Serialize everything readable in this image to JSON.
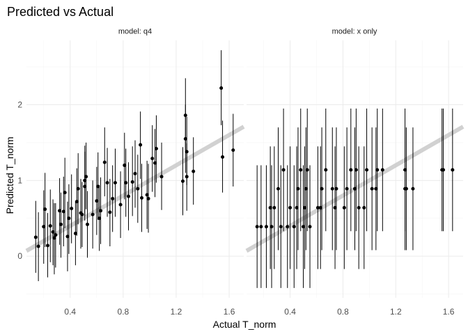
{
  "chart_data": {
    "type": "scatter",
    "title": "Predicted vs Actual",
    "xlabel": "Actual T_norm",
    "ylabel": "Predicted T_norm",
    "xlim": [
      0.07,
      1.71
    ],
    "ylim": [
      -0.55,
      2.85
    ],
    "x_ticks": [
      0.4,
      0.8,
      1.2,
      1.6
    ],
    "x_tick_labels": [
      "0.4",
      "0.8",
      "1.2",
      "1.6"
    ],
    "y_ticks": [
      0,
      1,
      2
    ],
    "y_tick_labels": [
      "0",
      "1",
      "2"
    ],
    "grid": true,
    "legend": "none",
    "colors": {
      "points": "#000000",
      "error_bars": "#000000",
      "reference_line": "#cccccc",
      "grid": "#ebebeb"
    },
    "reference_line": {
      "type": "y=x",
      "intercept": 0,
      "slope": 1
    },
    "panels": [
      {
        "label": "model: q4",
        "points": [
          {
            "x": 0.14,
            "y": 0.25,
            "lo": -0.22,
            "hi": 0.73
          },
          {
            "x": 0.16,
            "y": 0.13,
            "lo": -0.33,
            "hi": 0.58
          },
          {
            "x": 0.2,
            "y": 0.39,
            "lo": -0.1,
            "hi": 0.87
          },
          {
            "x": 0.21,
            "y": 0.62,
            "lo": 0.12,
            "hi": 1.1
          },
          {
            "x": 0.23,
            "y": 0.14,
            "lo": -0.28,
            "hi": 0.57
          },
          {
            "x": 0.25,
            "y": 0.4,
            "lo": -0.08,
            "hi": 0.88
          },
          {
            "x": 0.27,
            "y": 0.32,
            "lo": -0.12,
            "hi": 0.75
          },
          {
            "x": 0.28,
            "y": 0.24,
            "lo": -0.24,
            "hi": 0.7
          },
          {
            "x": 0.29,
            "y": 0.28,
            "lo": -0.15,
            "hi": 0.7
          },
          {
            "x": 0.32,
            "y": 0.6,
            "lo": 0.15,
            "hi": 1.03
          },
          {
            "x": 0.33,
            "y": 0.42,
            "lo": -0.02,
            "hi": 0.84
          },
          {
            "x": 0.35,
            "y": 0.59,
            "lo": 0.13,
            "hi": 1.05
          },
          {
            "x": 0.36,
            "y": 0.84,
            "lo": 0.37,
            "hi": 1.3
          },
          {
            "x": 0.38,
            "y": 0.26,
            "lo": -0.2,
            "hi": 0.72
          },
          {
            "x": 0.39,
            "y": 0.5,
            "lo": 0.03,
            "hi": 0.95
          },
          {
            "x": 0.41,
            "y": 0.63,
            "lo": 0.17,
            "hi": 1.08
          },
          {
            "x": 0.44,
            "y": 0.3,
            "lo": -0.12,
            "hi": 0.72
          },
          {
            "x": 0.45,
            "y": 0.72,
            "lo": 0.27,
            "hi": 1.16
          },
          {
            "x": 0.46,
            "y": 0.89,
            "lo": 0.42,
            "hi": 1.36
          },
          {
            "x": 0.48,
            "y": 0.57,
            "lo": 0.1,
            "hi": 1.02
          },
          {
            "x": 0.49,
            "y": 0.55,
            "lo": 0.12,
            "hi": 0.98
          },
          {
            "x": 0.51,
            "y": 0.92,
            "lo": 0.47,
            "hi": 1.38
          },
          {
            "x": 0.51,
            "y": 1.0,
            "lo": 0.53,
            "hi": 1.46
          },
          {
            "x": 0.52,
            "y": 1.05,
            "lo": 0.62,
            "hi": 1.5
          },
          {
            "x": 0.53,
            "y": 0.42,
            "lo": -0.02,
            "hi": 0.86
          },
          {
            "x": 0.57,
            "y": 0.55,
            "lo": 0.1,
            "hi": 1.0
          },
          {
            "x": 0.6,
            "y": 0.73,
            "lo": 0.28,
            "hi": 1.18
          },
          {
            "x": 0.61,
            "y": 0.92,
            "lo": 0.48,
            "hi": 1.37
          },
          {
            "x": 0.62,
            "y": 0.5,
            "lo": 0.07,
            "hi": 0.94
          },
          {
            "x": 0.63,
            "y": 0.6,
            "lo": 0.16,
            "hi": 1.04
          },
          {
            "x": 0.66,
            "y": 1.24,
            "lo": 0.79,
            "hi": 1.7
          },
          {
            "x": 0.68,
            "y": 0.97,
            "lo": 0.52,
            "hi": 1.43
          },
          {
            "x": 0.7,
            "y": 0.58,
            "lo": 0.13,
            "hi": 1.02
          },
          {
            "x": 0.72,
            "y": 0.76,
            "lo": 0.32,
            "hi": 1.2
          },
          {
            "x": 0.74,
            "y": 0.97,
            "lo": 0.52,
            "hi": 1.42
          },
          {
            "x": 0.78,
            "y": 0.68,
            "lo": 0.24,
            "hi": 1.12
          },
          {
            "x": 0.81,
            "y": 1.2,
            "lo": 0.75,
            "hi": 1.63
          },
          {
            "x": 0.82,
            "y": 0.97,
            "lo": 0.52,
            "hi": 1.42
          },
          {
            "x": 0.84,
            "y": 0.79,
            "lo": 0.34,
            "hi": 1.24
          },
          {
            "x": 0.87,
            "y": 0.98,
            "lo": 0.53,
            "hi": 1.45
          },
          {
            "x": 0.89,
            "y": 1.09,
            "lo": 0.64,
            "hi": 1.53
          },
          {
            "x": 0.91,
            "y": 0.89,
            "lo": 0.44,
            "hi": 1.34
          },
          {
            "x": 0.93,
            "y": 1.47,
            "lo": 1.02,
            "hi": 1.91
          },
          {
            "x": 0.94,
            "y": 0.77,
            "lo": 0.32,
            "hi": 1.22
          },
          {
            "x": 0.98,
            "y": 0.81,
            "lo": 0.36,
            "hi": 1.26
          },
          {
            "x": 0.99,
            "y": 0.76,
            "lo": 0.31,
            "hi": 1.22
          },
          {
            "x": 1.02,
            "y": 1.29,
            "lo": 0.85,
            "hi": 1.73
          },
          {
            "x": 1.04,
            "y": 1.23,
            "lo": 0.78,
            "hi": 1.68
          },
          {
            "x": 1.05,
            "y": 1.42,
            "lo": 0.97,
            "hi": 1.86
          },
          {
            "x": 1.09,
            "y": 1.05,
            "lo": 0.61,
            "hi": 1.5
          },
          {
            "x": 1.25,
            "y": 0.99,
            "lo": 0.54,
            "hi": 1.44
          },
          {
            "x": 1.27,
            "y": 1.86,
            "lo": 1.4,
            "hi": 2.35
          },
          {
            "x": 1.27,
            "y": 1.55,
            "lo": 1.1,
            "hi": 2.0
          },
          {
            "x": 1.28,
            "y": 1.38,
            "lo": 0.94,
            "hi": 1.84
          },
          {
            "x": 1.28,
            "y": 1.05,
            "lo": 0.6,
            "hi": 1.49
          },
          {
            "x": 1.33,
            "y": 1.12,
            "lo": 0.68,
            "hi": 1.57
          },
          {
            "x": 1.54,
            "y": 2.22,
            "lo": 1.73,
            "hi": 2.72
          },
          {
            "x": 1.55,
            "y": 1.31,
            "lo": 0.84,
            "hi": 1.79
          },
          {
            "x": 1.63,
            "y": 1.4,
            "lo": 0.92,
            "hi": 1.88
          }
        ]
      },
      {
        "label": "model: x only",
        "points": [
          {
            "x": 0.15,
            "y": 0.39,
            "lo": -0.42,
            "hi": 1.2
          },
          {
            "x": 0.18,
            "y": 0.39,
            "lo": -0.42,
            "hi": 1.2
          },
          {
            "x": 0.22,
            "y": 0.39,
            "lo": -0.42,
            "hi": 1.2
          },
          {
            "x": 0.25,
            "y": 0.64,
            "lo": -0.17,
            "hi": 1.45
          },
          {
            "x": 0.26,
            "y": 0.39,
            "lo": -0.42,
            "hi": 1.2
          },
          {
            "x": 0.28,
            "y": 0.64,
            "lo": -0.17,
            "hi": 1.45
          },
          {
            "x": 0.31,
            "y": 0.89,
            "lo": 0.08,
            "hi": 1.7
          },
          {
            "x": 0.33,
            "y": 0.39,
            "lo": -0.42,
            "hi": 1.2
          },
          {
            "x": 0.35,
            "y": 1.14,
            "lo": 0.33,
            "hi": 1.95
          },
          {
            "x": 0.38,
            "y": 0.39,
            "lo": -0.42,
            "hi": 1.2
          },
          {
            "x": 0.4,
            "y": 0.64,
            "lo": -0.17,
            "hi": 1.45
          },
          {
            "x": 0.43,
            "y": 0.39,
            "lo": -0.42,
            "hi": 1.2
          },
          {
            "x": 0.45,
            "y": 0.64,
            "lo": -0.17,
            "hi": 1.45
          },
          {
            "x": 0.46,
            "y": 0.89,
            "lo": 0.08,
            "hi": 1.7
          },
          {
            "x": 0.48,
            "y": 1.14,
            "lo": 0.33,
            "hi": 1.95
          },
          {
            "x": 0.5,
            "y": 0.39,
            "lo": -0.42,
            "hi": 1.2
          },
          {
            "x": 0.51,
            "y": 0.64,
            "lo": -0.17,
            "hi": 1.45
          },
          {
            "x": 0.52,
            "y": 0.89,
            "lo": 0.08,
            "hi": 1.7
          },
          {
            "x": 0.53,
            "y": 1.14,
            "lo": 0.33,
            "hi": 1.95
          },
          {
            "x": 0.55,
            "y": 0.39,
            "lo": -0.42,
            "hi": 1.2
          },
          {
            "x": 0.61,
            "y": 0.64,
            "lo": -0.17,
            "hi": 1.45
          },
          {
            "x": 0.63,
            "y": 0.64,
            "lo": -0.17,
            "hi": 1.45
          },
          {
            "x": 0.64,
            "y": 0.89,
            "lo": 0.08,
            "hi": 1.7
          },
          {
            "x": 0.67,
            "y": 1.14,
            "lo": 0.33,
            "hi": 1.95
          },
          {
            "x": 0.72,
            "y": 0.89,
            "lo": 0.08,
            "hi": 1.7
          },
          {
            "x": 0.74,
            "y": 0.64,
            "lo": -0.17,
            "hi": 1.45
          },
          {
            "x": 0.75,
            "y": 0.89,
            "lo": 0.08,
            "hi": 1.7
          },
          {
            "x": 0.81,
            "y": 0.64,
            "lo": -0.17,
            "hi": 1.45
          },
          {
            "x": 0.83,
            "y": 0.89,
            "lo": 0.08,
            "hi": 1.7
          },
          {
            "x": 0.86,
            "y": 1.14,
            "lo": 0.33,
            "hi": 1.95
          },
          {
            "x": 0.89,
            "y": 0.89,
            "lo": 0.08,
            "hi": 1.7
          },
          {
            "x": 0.9,
            "y": 1.14,
            "lo": 0.33,
            "hi": 1.95
          },
          {
            "x": 0.92,
            "y": 0.64,
            "lo": -0.17,
            "hi": 1.45
          },
          {
            "x": 0.96,
            "y": 0.64,
            "lo": -0.17,
            "hi": 1.45
          },
          {
            "x": 0.98,
            "y": 1.14,
            "lo": 0.33,
            "hi": 1.95
          },
          {
            "x": 1.02,
            "y": 0.89,
            "lo": 0.08,
            "hi": 1.7
          },
          {
            "x": 1.05,
            "y": 0.89,
            "lo": 0.08,
            "hi": 1.7
          },
          {
            "x": 1.06,
            "y": 1.14,
            "lo": 0.33,
            "hi": 1.95
          },
          {
            "x": 1.1,
            "y": 1.14,
            "lo": 0.33,
            "hi": 1.95
          },
          {
            "x": 1.27,
            "y": 1.14,
            "lo": 0.33,
            "hi": 1.95
          },
          {
            "x": 1.27,
            "y": 0.89,
            "lo": 0.08,
            "hi": 1.7
          },
          {
            "x": 1.28,
            "y": 0.89,
            "lo": 0.08,
            "hi": 1.7
          },
          {
            "x": 1.33,
            "y": 0.89,
            "lo": 0.08,
            "hi": 1.7
          },
          {
            "x": 1.55,
            "y": 1.14,
            "lo": 0.33,
            "hi": 1.95
          },
          {
            "x": 1.56,
            "y": 1.14,
            "lo": 0.33,
            "hi": 1.95
          },
          {
            "x": 1.63,
            "y": 1.14,
            "lo": 0.33,
            "hi": 1.95
          }
        ]
      }
    ]
  }
}
